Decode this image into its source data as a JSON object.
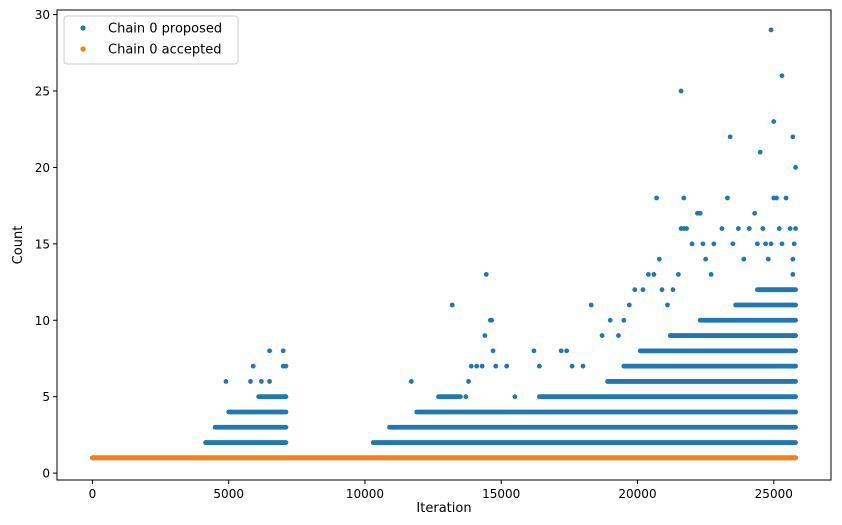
{
  "chart_data": {
    "type": "scatter",
    "xlabel": "Iteration",
    "ylabel": "Count",
    "xlim": [
      -1300,
      27100
    ],
    "ylim": [
      -0.45,
      30.3
    ],
    "xticks": [
      0,
      5000,
      10000,
      15000,
      20000,
      25000
    ],
    "yticks": [
      0,
      5,
      10,
      15,
      20,
      25,
      30
    ],
    "legend_position": "top-left",
    "series": [
      {
        "name": "Chain 0 proposed",
        "color": "#1f77b4",
        "segments": [
          {
            "value": 1,
            "x_range": [
              0,
              25800
            ]
          },
          {
            "value": 2,
            "x_range": [
              4150,
              7100
            ]
          },
          {
            "value": 3,
            "x_range": [
              4500,
              7100
            ]
          },
          {
            "value": 4,
            "x_range": [
              5000,
              7100
            ]
          },
          {
            "value": 5,
            "x_range": [
              6100,
              7100
            ]
          },
          {
            "value": 2,
            "x_range": [
              10300,
              25800
            ]
          },
          {
            "value": 3,
            "x_range": [
              10900,
              25800
            ]
          },
          {
            "value": 4,
            "x_range": [
              11900,
              25800
            ]
          },
          {
            "value": 5,
            "x_range": [
              12700,
              13500
            ]
          },
          {
            "value": 5,
            "x_range": [
              16400,
              25800
            ]
          },
          {
            "value": 6,
            "x_range": [
              18900,
              25800
            ]
          },
          {
            "value": 7,
            "x_range": [
              19500,
              25800
            ]
          },
          {
            "value": 8,
            "x_range": [
              20100,
              25800
            ]
          },
          {
            "value": 9,
            "x_range": [
              21200,
              25800
            ]
          },
          {
            "value": 10,
            "x_range": [
              22300,
              25800
            ]
          },
          {
            "value": 11,
            "x_range": [
              23600,
              25800
            ]
          },
          {
            "value": 12,
            "x_range": [
              24400,
              25800
            ]
          }
        ],
        "points": [
          [
            4900,
            6
          ],
          [
            5800,
            6
          ],
          [
            5900,
            7
          ],
          [
            6200,
            6
          ],
          [
            6500,
            8
          ],
          [
            6500,
            6
          ],
          [
            7000,
            8
          ],
          [
            7000,
            7
          ],
          [
            7100,
            7
          ],
          [
            11700,
            6
          ],
          [
            13200,
            11
          ],
          [
            13700,
            5
          ],
          [
            13800,
            6
          ],
          [
            13900,
            7
          ],
          [
            14100,
            7
          ],
          [
            14300,
            7
          ],
          [
            14400,
            9
          ],
          [
            14450,
            13
          ],
          [
            14600,
            10
          ],
          [
            14650,
            10
          ],
          [
            14700,
            8
          ],
          [
            14800,
            7
          ],
          [
            15200,
            7
          ],
          [
            15500,
            5
          ],
          [
            16200,
            8
          ],
          [
            16400,
            7
          ],
          [
            17200,
            8
          ],
          [
            17400,
            8
          ],
          [
            17600,
            7
          ],
          [
            18000,
            7
          ],
          [
            18300,
            11
          ],
          [
            18700,
            9
          ],
          [
            19000,
            10
          ],
          [
            19300,
            9
          ],
          [
            19500,
            10
          ],
          [
            19700,
            11
          ],
          [
            19900,
            12
          ],
          [
            20200,
            12
          ],
          [
            20400,
            13
          ],
          [
            20600,
            13
          ],
          [
            20800,
            14
          ],
          [
            20900,
            12
          ],
          [
            21100,
            11
          ],
          [
            21300,
            12
          ],
          [
            21500,
            13
          ],
          [
            21600,
            16
          ],
          [
            21700,
            18
          ],
          [
            21800,
            16
          ],
          [
            22000,
            15
          ],
          [
            22200,
            17
          ],
          [
            22300,
            17
          ],
          [
            22500,
            14
          ],
          [
            22700,
            13
          ],
          [
            22800,
            15
          ],
          [
            23100,
            16
          ],
          [
            23300,
            18
          ],
          [
            23500,
            15
          ],
          [
            23700,
            16
          ],
          [
            23900,
            14
          ],
          [
            24100,
            16
          ],
          [
            24300,
            17
          ],
          [
            24400,
            15
          ],
          [
            24600,
            16
          ],
          [
            24700,
            15
          ],
          [
            24800,
            14
          ],
          [
            24900,
            15
          ],
          [
            25000,
            18
          ],
          [
            25100,
            18
          ],
          [
            25200,
            16
          ],
          [
            25300,
            15
          ],
          [
            25450,
            18
          ],
          [
            25600,
            16
          ],
          [
            25700,
            13
          ],
          [
            25700,
            14
          ],
          [
            25750,
            15
          ],
          [
            25800,
            16
          ],
          [
            20700,
            18
          ],
          [
            21600,
            25
          ],
          [
            21700,
            16
          ],
          [
            22400,
            15
          ],
          [
            23400,
            22
          ],
          [
            24500,
            21
          ],
          [
            24900,
            29
          ],
          [
            25000,
            23
          ],
          [
            25300,
            26
          ],
          [
            25700,
            22
          ],
          [
            25800,
            20
          ]
        ]
      },
      {
        "name": "Chain 0 accepted",
        "color": "#ff7f0e",
        "segments": [
          {
            "value": 1,
            "x_range": [
              0,
              25800
            ]
          }
        ]
      }
    ]
  }
}
